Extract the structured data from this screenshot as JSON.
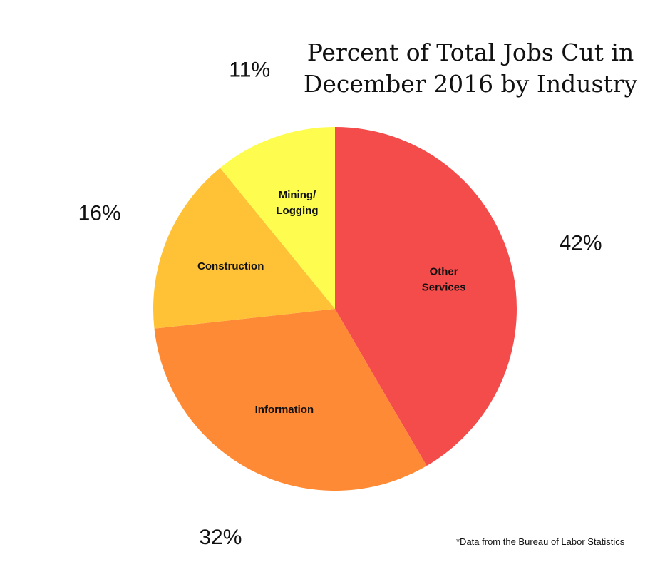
{
  "chart_data": {
    "type": "pie",
    "title_lines": [
      "Percent of Total Jobs Cut in",
      "December 2016 by Industry"
    ],
    "slices": [
      {
        "label": [
          "Other",
          "Services"
        ],
        "value": 42,
        "value_label": "42%",
        "color": "#f44b4b"
      },
      {
        "label": [
          "Information"
        ],
        "value": 32,
        "value_label": "32%",
        "color": "#ff8a36"
      },
      {
        "label": [
          "Construction"
        ],
        "value": 16,
        "value_label": "16%",
        "color": "#ffc236"
      },
      {
        "label": [
          "Mining/",
          "Logging"
        ],
        "value": 11,
        "value_label": "11%",
        "color": "#fdfc4f"
      }
    ],
    "start_angle": "12 o'clock",
    "direction": "clockwise"
  },
  "footnote": "*Data from the Bureau of Labor Statistics"
}
